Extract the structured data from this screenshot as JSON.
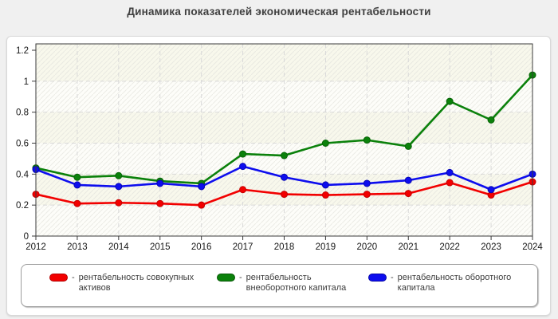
{
  "title": "Динамика показателей экономическая рентабельности",
  "colors": {
    "page_bg": "#f0f0f0",
    "plot_band_cream": "#f8f8ec",
    "plot_band_white": "#fdfdf9",
    "hatch_line": "#e0e0da",
    "grid": "#d8d8d8",
    "axis": "#3a3a3a",
    "title_text": "#3f3f3f",
    "red_series": "#f20000",
    "green_series": "#0b810b",
    "blue_series": "#0d0dee"
  },
  "chart_data": {
    "type": "line",
    "title": "Динамика показателей экономическая рентабельности",
    "x": [
      "2012",
      "2013",
      "2014",
      "2015",
      "2016",
      "2017",
      "2018",
      "2019",
      "2020",
      "2021",
      "2022",
      "2023",
      "2024"
    ],
    "ylim": [
      0,
      1.2
    ],
    "y_ticks": [
      "0",
      "0.2",
      "0.4",
      "0.6",
      "0.8",
      "1",
      "1.2"
    ],
    "y_tick_values": [
      0,
      0.2,
      0.4,
      0.6,
      0.8,
      1,
      1.2
    ],
    "grid": "dashed horizontal and vertical",
    "legend_position": "bottom",
    "series": [
      {
        "name": "рентабельность совокупных активов",
        "color": "#f20000",
        "marker_stroke": "#c40000",
        "values": [
          0.27,
          0.21,
          0.215,
          0.21,
          0.2,
          0.3,
          0.27,
          0.265,
          0.27,
          0.275,
          0.345,
          0.265,
          0.35
        ]
      },
      {
        "name": "рентабельность внеоборотного капитала",
        "color": "#0b810b",
        "marker_stroke": "#076307",
        "values": [
          0.44,
          0.38,
          0.39,
          0.355,
          0.34,
          0.53,
          0.52,
          0.6,
          0.62,
          0.58,
          0.87,
          0.75,
          1.04
        ]
      },
      {
        "name": "рентабельность оборотного капитала",
        "color": "#0d0dee",
        "marker_stroke": "#0606b4",
        "values": [
          0.43,
          0.33,
          0.32,
          0.34,
          0.32,
          0.45,
          0.38,
          0.33,
          0.34,
          0.36,
          0.41,
          0.3,
          0.4
        ]
      }
    ]
  },
  "legend": {
    "items": [
      {
        "dash": "-",
        "label": "рентабельность совокупных активов",
        "color": "#f20000",
        "border": "#b50000"
      },
      {
        "dash": "-",
        "label": "рентабельность внеоборотного капитала",
        "color": "#0b810b",
        "border": "#065806"
      },
      {
        "dash": "-",
        "label": "рентабельность оборотного капитала",
        "color": "#0d0dee",
        "border": "#0505a8"
      }
    ]
  }
}
